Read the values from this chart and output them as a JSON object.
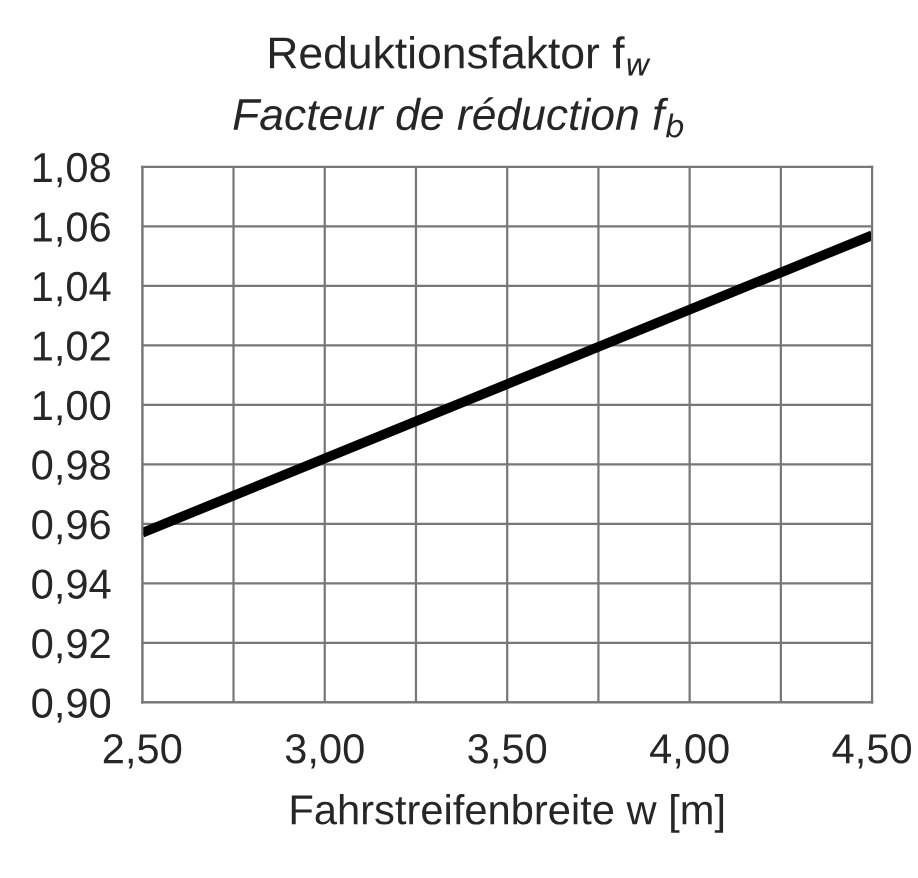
{
  "chart_data": {
    "type": "line",
    "title": "Reduktionsfaktor f$_{w}$",
    "subtitle": "Facteur de réduction f$_{b}$",
    "xlabel": "Fahrstreifenbreite w [m]",
    "x": [
      2.5,
      4.5
    ],
    "series": [
      {
        "color": "#000000",
        "values": [
          0.957,
          1.057
        ]
      }
    ],
    "xlim": [
      2.5,
      4.5
    ],
    "xticks": [
      {
        "value": 2.5,
        "label": "2,50"
      },
      {
        "value": 2.75,
        "label": null
      },
      {
        "value": 3.0,
        "label": "3,00"
      },
      {
        "value": 3.25,
        "label": null
      },
      {
        "value": 3.5,
        "label": "3,50"
      },
      {
        "value": 3.75,
        "label": null
      },
      {
        "value": 4.0,
        "label": "4,00"
      },
      {
        "value": 4.25,
        "label": null
      },
      {
        "value": 4.5,
        "label": "4,50"
      }
    ],
    "ylim": [
      0.9,
      1.08
    ],
    "yticks": [
      {
        "value": 0.9,
        "label": "0,90"
      },
      {
        "value": 0.92,
        "label": "0,92"
      },
      {
        "value": 0.94,
        "label": "0,94"
      },
      {
        "value": 0.96,
        "label": "0,96"
      },
      {
        "value": 0.98,
        "label": "0,98"
      },
      {
        "value": 1.0,
        "label": "1,00"
      },
      {
        "value": 1.02,
        "label": "1,02"
      },
      {
        "value": 1.04,
        "label": "1,04"
      },
      {
        "value": 1.06,
        "label": "1,06"
      },
      {
        "value": 1.08,
        "label": "1,08"
      }
    ],
    "grid": true,
    "line_style": "solid"
  }
}
